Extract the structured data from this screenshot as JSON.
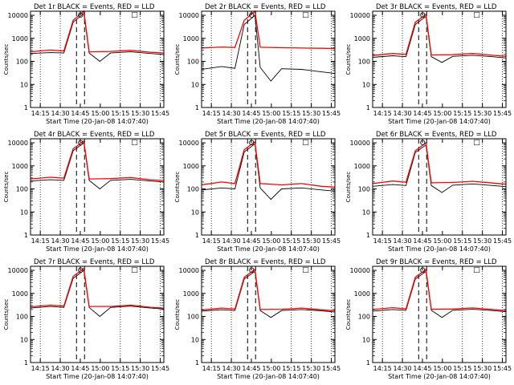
{
  "figure": {
    "xticks": [
      "14:15",
      "14:30",
      "14:45",
      "15:00",
      "15:15",
      "15:30",
      "15:45"
    ],
    "yticks": [
      "1",
      "10",
      "100",
      "1000",
      "10000"
    ],
    "ylabel": "Counts/sec",
    "xlabel": "Start Time (20-Jan-08 14:07:40)",
    "colors": {
      "events": "#000000",
      "lld": "#ff0000",
      "frame": "#000000"
    },
    "legend_symbols": {
      "circle": "O",
      "box": "□"
    }
  },
  "chart_data": [
    {
      "type": "line",
      "title": "Det 1r BLACK = Events, RED = LLD",
      "yscale": "log",
      "ylim": [
        1,
        15000
      ],
      "x_unit": "minutes after 14:07:40",
      "series": [
        {
          "name": "Events",
          "values": [
            {
              "x": 0,
              "y": 220
            },
            {
              "x": 15,
              "y": 240
            },
            {
              "x": 25,
              "y": 230
            },
            {
              "x": 32,
              "y": 5000
            },
            {
              "x": 40,
              "y": 12000
            },
            {
              "x": 44,
              "y": 230
            },
            {
              "x": 52,
              "y": 100
            },
            {
              "x": 60,
              "y": 230
            },
            {
              "x": 75,
              "y": 260
            },
            {
              "x": 90,
              "y": 220
            },
            {
              "x": 100,
              "y": 200
            }
          ]
        },
        {
          "name": "LLD",
          "values": [
            {
              "x": 0,
              "y": 260
            },
            {
              "x": 15,
              "y": 310
            },
            {
              "x": 25,
              "y": 280
            },
            {
              "x": 32,
              "y": 6000
            },
            {
              "x": 40,
              "y": 15000
            },
            {
              "x": 44,
              "y": 260
            },
            {
              "x": 60,
              "y": 270
            },
            {
              "x": 75,
              "y": 300
            },
            {
              "x": 90,
              "y": 250
            },
            {
              "x": 100,
              "y": 230
            }
          ]
        }
      ]
    },
    {
      "type": "line",
      "title": "Det 2r BLACK = Events, RED = LLD",
      "yscale": "log",
      "ylim": [
        1,
        15000
      ],
      "x_unit": "minutes after 14:07:40",
      "series": [
        {
          "name": "Events",
          "values": [
            {
              "x": 0,
              "y": 45
            },
            {
              "x": 15,
              "y": 60
            },
            {
              "x": 25,
              "y": 50
            },
            {
              "x": 32,
              "y": 4000
            },
            {
              "x": 40,
              "y": 10000
            },
            {
              "x": 44,
              "y": 55
            },
            {
              "x": 52,
              "y": 14
            },
            {
              "x": 60,
              "y": 48
            },
            {
              "x": 75,
              "y": 45
            },
            {
              "x": 90,
              "y": 35
            },
            {
              "x": 100,
              "y": 30
            }
          ]
        },
        {
          "name": "LLD",
          "values": [
            {
              "x": 0,
              "y": 380
            },
            {
              "x": 15,
              "y": 420
            },
            {
              "x": 25,
              "y": 400
            },
            {
              "x": 32,
              "y": 6000
            },
            {
              "x": 40,
              "y": 15000
            },
            {
              "x": 44,
              "y": 410
            },
            {
              "x": 60,
              "y": 390
            },
            {
              "x": 75,
              "y": 380
            },
            {
              "x": 90,
              "y": 370
            },
            {
              "x": 100,
              "y": 360
            }
          ]
        }
      ]
    },
    {
      "type": "line",
      "title": "Det 3r BLACK = Events, RED = LLD",
      "yscale": "log",
      "ylim": [
        1,
        15000
      ],
      "x_unit": "minutes after 14:07:40",
      "series": [
        {
          "name": "Events",
          "values": [
            {
              "x": 0,
              "y": 150
            },
            {
              "x": 15,
              "y": 175
            },
            {
              "x": 25,
              "y": 160
            },
            {
              "x": 32,
              "y": 4000
            },
            {
              "x": 40,
              "y": 9000
            },
            {
              "x": 44,
              "y": 160
            },
            {
              "x": 52,
              "y": 90
            },
            {
              "x": 60,
              "y": 165
            },
            {
              "x": 75,
              "y": 185
            },
            {
              "x": 90,
              "y": 160
            },
            {
              "x": 100,
              "y": 140
            }
          ]
        },
        {
          "name": "LLD",
          "values": [
            {
              "x": 0,
              "y": 180
            },
            {
              "x": 15,
              "y": 220
            },
            {
              "x": 25,
              "y": 200
            },
            {
              "x": 32,
              "y": 5000
            },
            {
              "x": 40,
              "y": 11000
            },
            {
              "x": 44,
              "y": 190
            },
            {
              "x": 60,
              "y": 195
            },
            {
              "x": 75,
              "y": 220
            },
            {
              "x": 90,
              "y": 185
            },
            {
              "x": 100,
              "y": 165
            }
          ]
        }
      ]
    },
    {
      "type": "line",
      "title": "Det 4r BLACK = Events, RED = LLD",
      "yscale": "log",
      "ylim": [
        1,
        15000
      ],
      "x_unit": "minutes after 14:07:40",
      "series": [
        {
          "name": "Events",
          "values": [
            {
              "x": 0,
              "y": 220
            },
            {
              "x": 15,
              "y": 250
            },
            {
              "x": 25,
              "y": 235
            },
            {
              "x": 32,
              "y": 4500
            },
            {
              "x": 40,
              "y": 10000
            },
            {
              "x": 44,
              "y": 235
            },
            {
              "x": 52,
              "y": 100
            },
            {
              "x": 60,
              "y": 235
            },
            {
              "x": 75,
              "y": 260
            },
            {
              "x": 90,
              "y": 220
            },
            {
              "x": 100,
              "y": 200
            }
          ]
        },
        {
          "name": "LLD",
          "values": [
            {
              "x": 0,
              "y": 270
            },
            {
              "x": 15,
              "y": 320
            },
            {
              "x": 25,
              "y": 290
            },
            {
              "x": 32,
              "y": 5500
            },
            {
              "x": 40,
              "y": 12000
            },
            {
              "x": 44,
              "y": 270
            },
            {
              "x": 60,
              "y": 280
            },
            {
              "x": 75,
              "y": 310
            },
            {
              "x": 90,
              "y": 250
            },
            {
              "x": 100,
              "y": 230
            }
          ]
        }
      ]
    },
    {
      "type": "line",
      "title": "Det 5r BLACK = Events, RED = LLD",
      "yscale": "log",
      "ylim": [
        1,
        15000
      ],
      "x_unit": "minutes after 14:07:40",
      "series": [
        {
          "name": "Events",
          "values": [
            {
              "x": 0,
              "y": 90
            },
            {
              "x": 15,
              "y": 110
            },
            {
              "x": 25,
              "y": 100
            },
            {
              "x": 32,
              "y": 4000
            },
            {
              "x": 40,
              "y": 9000
            },
            {
              "x": 44,
              "y": 110
            },
            {
              "x": 52,
              "y": 35
            },
            {
              "x": 60,
              "y": 100
            },
            {
              "x": 75,
              "y": 110
            },
            {
              "x": 90,
              "y": 90
            },
            {
              "x": 100,
              "y": 80
            }
          ]
        },
        {
          "name": "LLD",
          "values": [
            {
              "x": 0,
              "y": 150
            },
            {
              "x": 15,
              "y": 200
            },
            {
              "x": 25,
              "y": 170
            },
            {
              "x": 32,
              "y": 5000
            },
            {
              "x": 40,
              "y": 11000
            },
            {
              "x": 44,
              "y": 170
            },
            {
              "x": 60,
              "y": 150
            },
            {
              "x": 75,
              "y": 170
            },
            {
              "x": 90,
              "y": 130
            },
            {
              "x": 100,
              "y": 120
            }
          ]
        }
      ]
    },
    {
      "type": "line",
      "title": "Det 6r BLACK = Events, RED = LLD",
      "yscale": "log",
      "ylim": [
        1,
        15000
      ],
      "x_unit": "minutes after 14:07:40",
      "series": [
        {
          "name": "Events",
          "values": [
            {
              "x": 0,
              "y": 130
            },
            {
              "x": 15,
              "y": 155
            },
            {
              "x": 25,
              "y": 140
            },
            {
              "x": 32,
              "y": 3800
            },
            {
              "x": 40,
              "y": 8000
            },
            {
              "x": 44,
              "y": 140
            },
            {
              "x": 52,
              "y": 70
            },
            {
              "x": 60,
              "y": 145
            },
            {
              "x": 75,
              "y": 165
            },
            {
              "x": 90,
              "y": 140
            },
            {
              "x": 100,
              "y": 125
            }
          ]
        },
        {
          "name": "LLD",
          "values": [
            {
              "x": 0,
              "y": 170
            },
            {
              "x": 15,
              "y": 220
            },
            {
              "x": 25,
              "y": 195
            },
            {
              "x": 32,
              "y": 4500
            },
            {
              "x": 40,
              "y": 10000
            },
            {
              "x": 44,
              "y": 185
            },
            {
              "x": 60,
              "y": 190
            },
            {
              "x": 75,
              "y": 215
            },
            {
              "x": 90,
              "y": 180
            },
            {
              "x": 100,
              "y": 160
            }
          ]
        }
      ]
    },
    {
      "type": "line",
      "title": "Det 7r BLACK = Events, RED = LLD",
      "yscale": "log",
      "ylim": [
        1,
        15000
      ],
      "x_unit": "minutes after 14:07:40",
      "series": [
        {
          "name": "Events",
          "values": [
            {
              "x": 0,
              "y": 230
            },
            {
              "x": 15,
              "y": 270
            },
            {
              "x": 25,
              "y": 245
            },
            {
              "x": 32,
              "y": 4500
            },
            {
              "x": 40,
              "y": 10000
            },
            {
              "x": 44,
              "y": 245
            },
            {
              "x": 52,
              "y": 100
            },
            {
              "x": 60,
              "y": 245
            },
            {
              "x": 75,
              "y": 280
            },
            {
              "x": 90,
              "y": 230
            },
            {
              "x": 100,
              "y": 210
            }
          ]
        },
        {
          "name": "LLD",
          "values": [
            {
              "x": 0,
              "y": 260
            },
            {
              "x": 15,
              "y": 310
            },
            {
              "x": 25,
              "y": 280
            },
            {
              "x": 32,
              "y": 5500
            },
            {
              "x": 40,
              "y": 12000
            },
            {
              "x": 44,
              "y": 270
            },
            {
              "x": 60,
              "y": 270
            },
            {
              "x": 75,
              "y": 310
            },
            {
              "x": 90,
              "y": 250
            },
            {
              "x": 100,
              "y": 230
            }
          ]
        }
      ]
    },
    {
      "type": "line",
      "title": "Det 8r BLACK = Events, RED = LLD",
      "yscale": "log",
      "ylim": [
        1,
        15000
      ],
      "x_unit": "minutes after 14:07:40",
      "series": [
        {
          "name": "Events",
          "values": [
            {
              "x": 0,
              "y": 170
            },
            {
              "x": 15,
              "y": 195
            },
            {
              "x": 25,
              "y": 180
            },
            {
              "x": 32,
              "y": 4200
            },
            {
              "x": 40,
              "y": 9000
            },
            {
              "x": 44,
              "y": 180
            },
            {
              "x": 52,
              "y": 90
            },
            {
              "x": 60,
              "y": 180
            },
            {
              "x": 75,
              "y": 200
            },
            {
              "x": 90,
              "y": 175
            },
            {
              "x": 100,
              "y": 155
            }
          ]
        },
        {
          "name": "LLD",
          "values": [
            {
              "x": 0,
              "y": 190
            },
            {
              "x": 15,
              "y": 230
            },
            {
              "x": 25,
              "y": 210
            },
            {
              "x": 32,
              "y": 5000
            },
            {
              "x": 40,
              "y": 11000
            },
            {
              "x": 44,
              "y": 200
            },
            {
              "x": 60,
              "y": 205
            },
            {
              "x": 75,
              "y": 230
            },
            {
              "x": 90,
              "y": 195
            },
            {
              "x": 100,
              "y": 175
            }
          ]
        }
      ]
    },
    {
      "type": "line",
      "title": "Det 9r BLACK = Events, RED = LLD",
      "yscale": "log",
      "ylim": [
        1,
        15000
      ],
      "x_unit": "minutes after 14:07:40",
      "series": [
        {
          "name": "Events",
          "values": [
            {
              "x": 0,
              "y": 170
            },
            {
              "x": 15,
              "y": 200
            },
            {
              "x": 25,
              "y": 185
            },
            {
              "x": 32,
              "y": 4200
            },
            {
              "x": 40,
              "y": 9000
            },
            {
              "x": 44,
              "y": 185
            },
            {
              "x": 52,
              "y": 90
            },
            {
              "x": 60,
              "y": 185
            },
            {
              "x": 75,
              "y": 205
            },
            {
              "x": 90,
              "y": 180
            },
            {
              "x": 100,
              "y": 160
            }
          ]
        },
        {
          "name": "LLD",
          "values": [
            {
              "x": 0,
              "y": 200
            },
            {
              "x": 15,
              "y": 240
            },
            {
              "x": 25,
              "y": 215
            },
            {
              "x": 32,
              "y": 5000
            },
            {
              "x": 40,
              "y": 11000
            },
            {
              "x": 44,
              "y": 205
            },
            {
              "x": 60,
              "y": 210
            },
            {
              "x": 75,
              "y": 235
            },
            {
              "x": 90,
              "y": 200
            },
            {
              "x": 100,
              "y": 180
            }
          ]
        }
      ]
    }
  ]
}
